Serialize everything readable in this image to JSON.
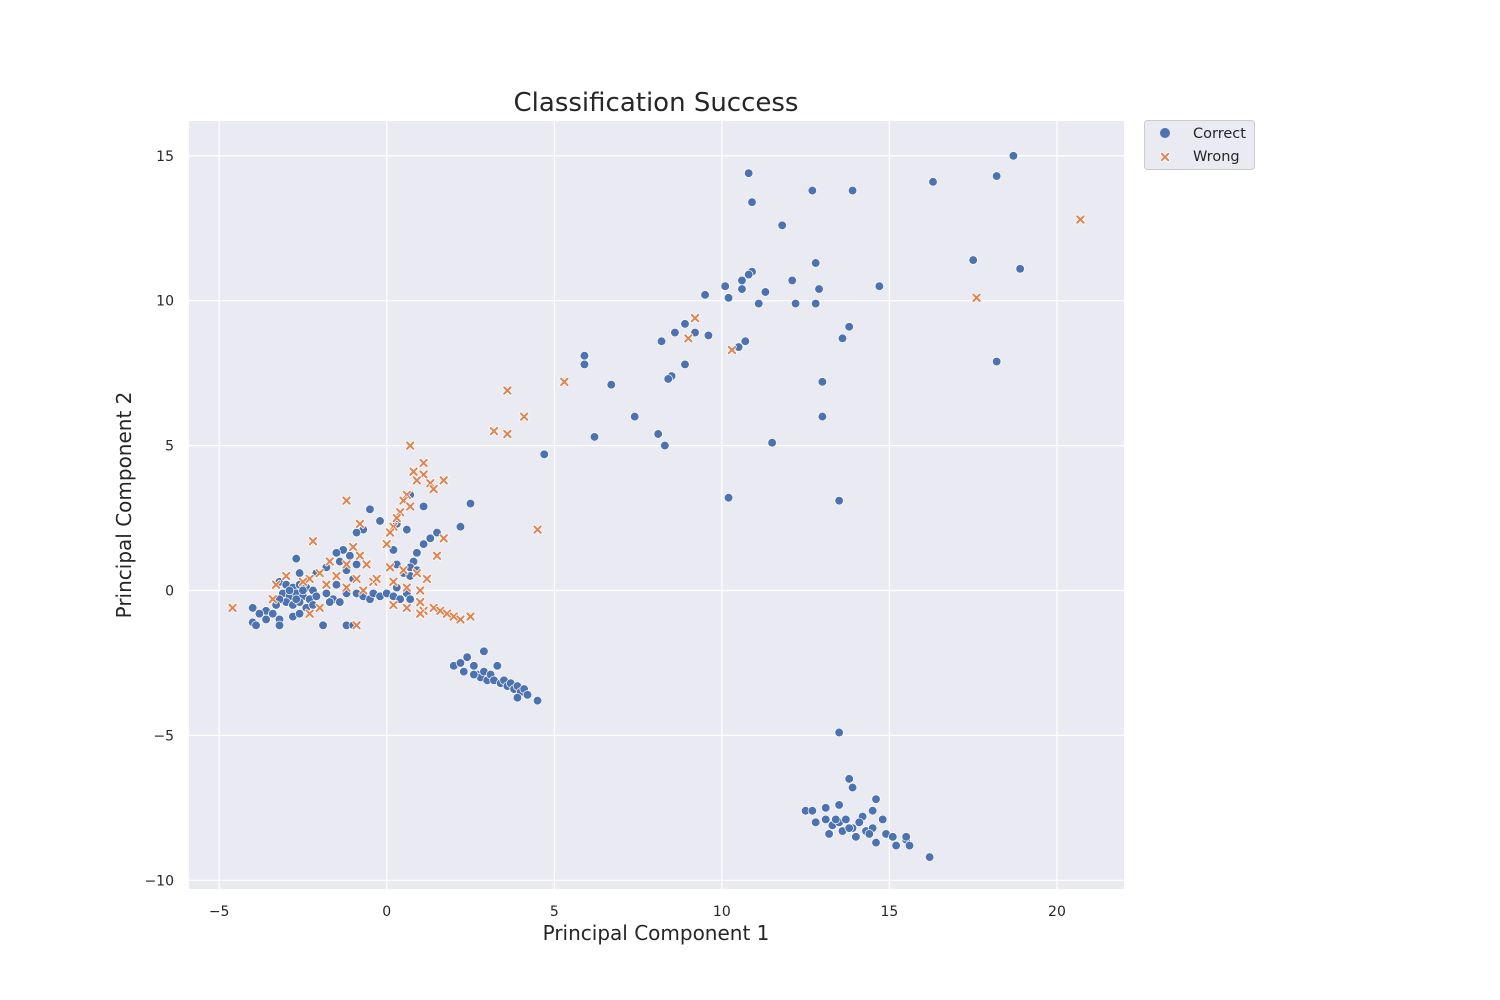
{
  "chart_data": {
    "type": "scatter",
    "title": "Classification Success",
    "xlabel": "Principal Component 1",
    "ylabel": "Principal Component 2",
    "xlim": [
      -5.9,
      22
    ],
    "ylim": [
      -10.3,
      16.2
    ],
    "xticks": [
      -5,
      0,
      5,
      10,
      15,
      20
    ],
    "yticks": [
      -10,
      -5,
      0,
      5,
      10,
      15
    ],
    "xtick_labels": [
      "−5",
      "0",
      "5",
      "10",
      "15",
      "20"
    ],
    "ytick_labels": [
      "−10",
      "−5",
      "0",
      "5",
      "10",
      "15"
    ],
    "grid": true,
    "legend": {
      "position": "outside-top-right",
      "entries": [
        "Correct",
        "Wrong"
      ]
    },
    "colors": {
      "Correct": "#4c72b0",
      "Wrong": "#dd8452",
      "background": "#eaeaf2",
      "grid": "#ffffff"
    },
    "series": [
      {
        "name": "Correct",
        "marker": "circle",
        "points": [
          [
            18.7,
            15.0
          ],
          [
            10.8,
            14.4
          ],
          [
            16.3,
            14.1
          ],
          [
            18.2,
            14.3
          ],
          [
            13.9,
            13.8
          ],
          [
            12.7,
            13.8
          ],
          [
            10.9,
            13.4
          ],
          [
            11.8,
            12.6
          ],
          [
            17.5,
            11.4
          ],
          [
            18.9,
            11.1
          ],
          [
            12.8,
            11.3
          ],
          [
            10.9,
            11.0
          ],
          [
            10.8,
            10.9
          ],
          [
            12.1,
            10.7
          ],
          [
            10.6,
            10.7
          ],
          [
            10.1,
            10.5
          ],
          [
            10.6,
            10.4
          ],
          [
            14.7,
            10.5
          ],
          [
            12.9,
            10.4
          ],
          [
            11.3,
            10.3
          ],
          [
            9.5,
            10.2
          ],
          [
            10.2,
            10.1
          ],
          [
            12.8,
            9.9
          ],
          [
            12.2,
            9.9
          ],
          [
            11.1,
            9.9
          ],
          [
            13.8,
            9.1
          ],
          [
            8.9,
            9.2
          ],
          [
            8.6,
            8.9
          ],
          [
            9.2,
            8.9
          ],
          [
            9.6,
            8.8
          ],
          [
            13.6,
            8.7
          ],
          [
            8.2,
            8.6
          ],
          [
            10.7,
            8.6
          ],
          [
            10.5,
            8.4
          ],
          [
            5.9,
            8.1
          ],
          [
            5.9,
            7.8
          ],
          [
            18.2,
            7.9
          ],
          [
            8.9,
            7.8
          ],
          [
            8.5,
            7.4
          ],
          [
            8.4,
            7.3
          ],
          [
            6.7,
            7.1
          ],
          [
            13.0,
            7.2
          ],
          [
            7.4,
            6.0
          ],
          [
            13.0,
            6.0
          ],
          [
            6.2,
            5.3
          ],
          [
            8.1,
            5.4
          ],
          [
            8.3,
            5.0
          ],
          [
            11.5,
            5.1
          ],
          [
            4.7,
            4.7
          ],
          [
            10.2,
            3.2
          ],
          [
            13.5,
            3.1
          ],
          [
            2.5,
            3.0
          ],
          [
            0.7,
            3.3
          ],
          [
            -0.5,
            2.8
          ],
          [
            -0.2,
            2.4
          ],
          [
            0.3,
            2.3
          ],
          [
            1.1,
            2.9
          ],
          [
            2.2,
            2.2
          ],
          [
            -0.7,
            2.1
          ],
          [
            -0.9,
            2.0
          ],
          [
            0.6,
            2.1
          ],
          [
            1.5,
            2.0
          ],
          [
            1.3,
            1.8
          ],
          [
            1.1,
            1.6
          ],
          [
            -1.3,
            1.4
          ],
          [
            -1.5,
            1.3
          ],
          [
            -1.1,
            1.2
          ],
          [
            0.2,
            1.4
          ],
          [
            0.9,
            1.3
          ],
          [
            -2.7,
            1.1
          ],
          [
            -1.4,
            1.0
          ],
          [
            -0.9,
            0.9
          ],
          [
            0.8,
            1.0
          ],
          [
            0.3,
            0.9
          ],
          [
            0.7,
            0.8
          ],
          [
            -1.8,
            0.8
          ],
          [
            -1.2,
            0.7
          ],
          [
            0.9,
            0.7
          ],
          [
            0.5,
            0.6
          ],
          [
            0.7,
            0.5
          ],
          [
            -2.6,
            0.6
          ],
          [
            -2.1,
            0.6
          ],
          [
            -3.2,
            0.3
          ],
          [
            -3.0,
            0.2
          ],
          [
            -2.8,
            0.1
          ],
          [
            -2.6,
            0.2
          ],
          [
            -2.4,
            0.1
          ],
          [
            -2.2,
            0.0
          ],
          [
            -3.1,
            -0.1
          ],
          [
            -2.9,
            -0.2
          ],
          [
            -2.7,
            -0.1
          ],
          [
            -2.5,
            -0.2
          ],
          [
            -2.3,
            -0.3
          ],
          [
            -2.1,
            -0.2
          ],
          [
            -3.0,
            -0.4
          ],
          [
            -2.8,
            -0.5
          ],
          [
            -2.6,
            -0.4
          ],
          [
            -2.4,
            -0.6
          ],
          [
            -2.2,
            -0.5
          ],
          [
            -3.2,
            -0.3
          ],
          [
            -3.3,
            -0.5
          ],
          [
            -2.9,
            0.0
          ],
          [
            -2.5,
            0.0
          ],
          [
            -2.7,
            -0.3
          ],
          [
            -1.8,
            -0.1
          ],
          [
            -1.6,
            -0.3
          ],
          [
            -1.5,
            0.2
          ],
          [
            -1.2,
            -0.1
          ],
          [
            -1.0,
            0.4
          ],
          [
            -0.9,
            -0.1
          ],
          [
            -0.7,
            -0.2
          ],
          [
            -0.5,
            -0.3
          ],
          [
            -0.4,
            -0.1
          ],
          [
            -0.2,
            -0.2
          ],
          [
            0.0,
            -0.1
          ],
          [
            0.2,
            -0.2
          ],
          [
            0.3,
            0.1
          ],
          [
            0.4,
            -0.3
          ],
          [
            0.6,
            -0.1
          ],
          [
            0.7,
            -0.3
          ],
          [
            -1.4,
            -0.4
          ],
          [
            -1.7,
            -0.4
          ],
          [
            -1.9,
            -1.2
          ],
          [
            -1.2,
            -1.2
          ],
          [
            -1.0,
            -1.2
          ],
          [
            -2.8,
            -0.9
          ],
          [
            -2.6,
            -0.8
          ],
          [
            -3.6,
            -0.7
          ],
          [
            -3.8,
            -0.8
          ],
          [
            -4.0,
            -0.6
          ],
          [
            -4.0,
            -1.1
          ],
          [
            -3.9,
            -1.2
          ],
          [
            -3.6,
            -1.0
          ],
          [
            -3.2,
            -1.0
          ],
          [
            -3.2,
            -1.2
          ],
          [
            -3.4,
            -0.8
          ],
          [
            2.9,
            -2.1
          ],
          [
            2.0,
            -2.6
          ],
          [
            2.2,
            -2.5
          ],
          [
            2.4,
            -2.3
          ],
          [
            2.3,
            -2.8
          ],
          [
            2.6,
            -2.6
          ],
          [
            2.7,
            -2.9
          ],
          [
            2.8,
            -3.0
          ],
          [
            2.9,
            -2.8
          ],
          [
            3.0,
            -3.1
          ],
          [
            3.1,
            -2.9
          ],
          [
            3.2,
            -3.1
          ],
          [
            3.3,
            -2.6
          ],
          [
            3.4,
            -3.2
          ],
          [
            3.5,
            -3.1
          ],
          [
            3.6,
            -3.3
          ],
          [
            3.7,
            -3.2
          ],
          [
            3.8,
            -3.4
          ],
          [
            3.9,
            -3.3
          ],
          [
            4.0,
            -3.5
          ],
          [
            4.1,
            -3.4
          ],
          [
            4.2,
            -3.6
          ],
          [
            4.5,
            -3.8
          ],
          [
            3.9,
            -3.7
          ],
          [
            2.6,
            -2.9
          ],
          [
            13.5,
            -4.9
          ],
          [
            13.8,
            -6.5
          ],
          [
            13.9,
            -6.8
          ],
          [
            14.6,
            -7.2
          ],
          [
            12.5,
            -7.6
          ],
          [
            12.7,
            -7.6
          ],
          [
            13.1,
            -7.5
          ],
          [
            13.5,
            -7.4
          ],
          [
            14.2,
            -7.8
          ],
          [
            14.5,
            -7.6
          ],
          [
            12.8,
            -8.0
          ],
          [
            13.1,
            -7.9
          ],
          [
            13.3,
            -8.1
          ],
          [
            13.5,
            -8.0
          ],
          [
            13.7,
            -7.9
          ],
          [
            13.9,
            -8.2
          ],
          [
            14.1,
            -8.0
          ],
          [
            14.3,
            -8.3
          ],
          [
            14.5,
            -8.2
          ],
          [
            14.8,
            -7.9
          ],
          [
            14.9,
            -8.4
          ],
          [
            15.1,
            -8.5
          ],
          [
            15.2,
            -8.8
          ],
          [
            15.5,
            -8.6
          ],
          [
            15.6,
            -8.8
          ],
          [
            13.2,
            -8.4
          ],
          [
            13.6,
            -8.3
          ],
          [
            14.0,
            -8.5
          ],
          [
            14.6,
            -8.7
          ],
          [
            15.5,
            -8.5
          ],
          [
            16.2,
            -9.2
          ],
          [
            13.4,
            -7.9
          ],
          [
            13.8,
            -8.2
          ],
          [
            14.4,
            -8.4
          ]
        ]
      },
      {
        "name": "Wrong",
        "marker": "x",
        "points": [
          [
            20.7,
            12.8
          ],
          [
            17.6,
            10.1
          ],
          [
            9.2,
            9.4
          ],
          [
            9.0,
            8.7
          ],
          [
            10.3,
            8.3
          ],
          [
            3.6,
            6.9
          ],
          [
            5.3,
            7.2
          ],
          [
            4.1,
            6.0
          ],
          [
            3.2,
            5.5
          ],
          [
            3.6,
            5.4
          ],
          [
            0.7,
            5.0
          ],
          [
            1.1,
            4.4
          ],
          [
            0.8,
            4.1
          ],
          [
            1.1,
            4.0
          ],
          [
            1.3,
            3.7
          ],
          [
            0.9,
            3.8
          ],
          [
            1.7,
            3.8
          ],
          [
            1.4,
            3.5
          ],
          [
            0.6,
            3.3
          ],
          [
            0.5,
            3.1
          ],
          [
            0.7,
            2.9
          ],
          [
            0.4,
            2.7
          ],
          [
            -1.2,
            3.1
          ],
          [
            4.5,
            2.1
          ],
          [
            0.3,
            2.5
          ],
          [
            0.2,
            2.2
          ],
          [
            -0.8,
            2.3
          ],
          [
            0.1,
            2.0
          ],
          [
            1.7,
            1.8
          ],
          [
            -2.2,
            1.7
          ],
          [
            -1.0,
            1.5
          ],
          [
            0.0,
            1.6
          ],
          [
            1.5,
            1.2
          ],
          [
            -0.8,
            1.2
          ],
          [
            -1.7,
            1.0
          ],
          [
            -1.2,
            0.9
          ],
          [
            -0.6,
            0.9
          ],
          [
            0.1,
            0.8
          ],
          [
            0.5,
            0.7
          ],
          [
            0.9,
            0.6
          ],
          [
            -2.0,
            0.6
          ],
          [
            -2.3,
            0.4
          ],
          [
            -1.5,
            0.5
          ],
          [
            -0.9,
            0.4
          ],
          [
            -0.4,
            0.3
          ],
          [
            0.2,
            0.3
          ],
          [
            0.6,
            0.1
          ],
          [
            1.0,
            0.0
          ],
          [
            -3.3,
            0.2
          ],
          [
            -3.0,
            0.5
          ],
          [
            -2.5,
            0.3
          ],
          [
            -1.8,
            0.2
          ],
          [
            -1.2,
            0.1
          ],
          [
            -0.7,
            0.0
          ],
          [
            -3.4,
            -0.3
          ],
          [
            -2.0,
            -0.6
          ],
          [
            -2.3,
            -0.8
          ],
          [
            -4.6,
            -0.6
          ],
          [
            -0.9,
            -1.2
          ],
          [
            0.2,
            -0.5
          ],
          [
            0.6,
            -0.6
          ],
          [
            1.1,
            -0.7
          ],
          [
            1.4,
            -0.6
          ],
          [
            1.6,
            -0.7
          ],
          [
            1.8,
            -0.8
          ],
          [
            2.0,
            -0.9
          ],
          [
            2.2,
            -1.0
          ],
          [
            2.5,
            -0.9
          ],
          [
            1.0,
            -0.8
          ],
          [
            -0.3,
            0.4
          ],
          [
            1.2,
            0.4
          ],
          [
            1.0,
            -0.4
          ]
        ]
      }
    ]
  }
}
